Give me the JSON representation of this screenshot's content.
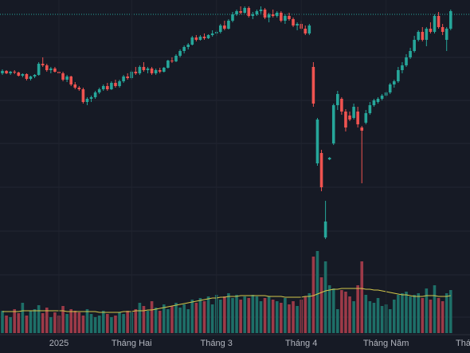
{
  "chart_data": {
    "type": "candlestick",
    "categories": [
      null,
      null,
      null,
      null,
      null,
      null,
      null,
      null,
      null,
      null,
      null,
      null,
      null,
      null,
      "2025",
      null,
      null,
      null,
      null,
      null,
      null,
      null,
      null,
      null,
      null,
      null,
      null,
      null,
      null,
      null,
      null,
      null,
      "Tháng Hai",
      null,
      null,
      null,
      null,
      null,
      null,
      null,
      null,
      null,
      null,
      null,
      null,
      null,
      null,
      null,
      null,
      null,
      null,
      null,
      null,
      "Tháng 3",
      null,
      null,
      null,
      null,
      null,
      null,
      null,
      null,
      null,
      null,
      null,
      null,
      null,
      null,
      null,
      null,
      null,
      null,
      null,
      null,
      "Tháng 4",
      null,
      null,
      null,
      null,
      null,
      null,
      null,
      null,
      null,
      null,
      null,
      null,
      null,
      null,
      null,
      null,
      null,
      null,
      null,
      null,
      "Tháng Năm",
      null,
      null,
      null,
      null,
      null,
      null,
      null,
      null,
      null,
      null,
      null,
      null,
      null,
      null,
      null,
      null
    ],
    "next_label": "Thá",
    "open": [
      208,
      211,
      208,
      210,
      209,
      205,
      207,
      201,
      204,
      206,
      220,
      218,
      212,
      214,
      210,
      208,
      200,
      204,
      194,
      190,
      188,
      172,
      176,
      178,
      184,
      188,
      192,
      188,
      196,
      192,
      198,
      204,
      202,
      210,
      208,
      216,
      212,
      214,
      208,
      212,
      210,
      215,
      224,
      223,
      230,
      236,
      241,
      244,
      253,
      250,
      254,
      252,
      256,
      258,
      260,
      268,
      264,
      274,
      282,
      286,
      284,
      290,
      280,
      282,
      286,
      288,
      278,
      282,
      280,
      284,
      274,
      280,
      276,
      268,
      270,
      264,
      258,
      216,
      95,
      108,
      2,
      100,
      120,
      168,
      176,
      160,
      155,
      152,
      160,
      140,
      146,
      158,
      168,
      172,
      176,
      180,
      184,
      194,
      198,
      212,
      218,
      228,
      236,
      250,
      260,
      250,
      264,
      260,
      280,
      266,
      250,
      264
    ],
    "high": [
      213,
      212,
      211,
      212,
      210,
      208,
      208,
      205,
      207,
      222,
      228,
      220,
      216,
      216,
      213,
      210,
      206,
      205,
      197,
      192,
      190,
      178,
      180,
      186,
      190,
      194,
      196,
      198,
      200,
      200,
      206,
      208,
      212,
      216,
      218,
      222,
      216,
      216,
      214,
      215,
      216,
      225,
      228,
      232,
      238,
      243,
      246,
      255,
      256,
      256,
      258,
      257,
      262,
      262,
      270,
      274,
      276,
      285,
      288,
      292,
      292,
      292,
      285,
      288,
      292,
      290,
      284,
      288,
      286,
      286,
      282,
      284,
      278,
      272,
      274,
      268,
      270,
      222,
      152,
      112,
      48,
      103,
      170,
      186,
      178,
      163,
      160,
      170,
      166,
      142,
      162,
      172,
      176,
      178,
      182,
      186,
      196,
      200,
      216,
      222,
      232,
      240,
      255,
      262,
      266,
      266,
      272,
      282,
      285,
      270,
      266,
      288
    ],
    "low": [
      206,
      207,
      206,
      207,
      204,
      203,
      199,
      199,
      202,
      205,
      216,
      210,
      208,
      209,
      205,
      198,
      197,
      192,
      188,
      186,
      170,
      168,
      172,
      176,
      182,
      186,
      186,
      187,
      190,
      190,
      196,
      200,
      200,
      206,
      206,
      210,
      208,
      206,
      206,
      208,
      209,
      214,
      221,
      222,
      228,
      233,
      238,
      243,
      248,
      249,
      250,
      251,
      254,
      255,
      258,
      262,
      263,
      272,
      280,
      282,
      283,
      278,
      276,
      280,
      283,
      276,
      272,
      278,
      278,
      272,
      270,
      274,
      266,
      262,
      262,
      256,
      256,
      166,
      92,
      60,
      0,
      99,
      118,
      162,
      156,
      135,
      148,
      150,
      140,
      70,
      144,
      156,
      166,
      170,
      174,
      178,
      182,
      190,
      196,
      208,
      216,
      226,
      234,
      248,
      248,
      242,
      258,
      258,
      264,
      256,
      236,
      262
    ],
    "close": [
      211,
      208,
      210,
      209,
      205,
      207,
      201,
      204,
      206,
      220,
      218,
      212,
      214,
      210,
      208,
      200,
      204,
      194,
      190,
      188,
      172,
      176,
      178,
      184,
      188,
      192,
      188,
      196,
      192,
      198,
      204,
      202,
      210,
      208,
      216,
      212,
      214,
      208,
      212,
      210,
      215,
      224,
      223,
      230,
      236,
      241,
      244,
      253,
      250,
      254,
      252,
      256,
      258,
      260,
      268,
      264,
      274,
      282,
      286,
      284,
      290,
      280,
      282,
      286,
      288,
      278,
      282,
      280,
      284,
      274,
      280,
      276,
      268,
      270,
      264,
      258,
      268,
      170,
      150,
      65,
      22,
      102,
      168,
      182,
      160,
      140,
      150,
      166,
      144,
      136,
      158,
      168,
      174,
      176,
      180,
      184,
      194,
      198,
      212,
      218,
      228,
      236,
      250,
      260,
      250,
      264,
      260,
      280,
      266,
      260,
      264,
      286
    ],
    "volume": [
      28,
      22,
      20,
      30,
      25,
      38,
      22,
      28,
      30,
      35,
      25,
      32,
      20,
      26,
      22,
      34,
      24,
      30,
      28,
      26,
      22,
      30,
      24,
      20,
      22,
      28,
      24,
      20,
      22,
      26,
      24,
      28,
      26,
      30,
      38,
      34,
      28,
      40,
      32,
      28,
      36,
      30,
      34,
      38,
      32,
      36,
      30,
      42,
      38,
      44,
      40,
      46,
      36,
      48,
      42,
      46,
      50,
      44,
      48,
      42,
      46,
      44,
      48,
      46,
      40,
      44,
      46,
      42,
      40,
      38,
      44,
      36,
      40,
      34,
      42,
      46,
      50,
      96,
      103,
      70,
      90,
      60,
      56,
      30,
      54,
      52,
      46,
      40,
      60,
      90,
      48,
      40,
      38,
      44,
      34,
      36,
      30,
      42,
      48,
      50,
      52,
      46,
      48,
      50,
      44,
      56,
      42,
      60,
      44,
      40,
      50,
      54
    ],
    "volume_ma": [
      27,
      27,
      27,
      27,
      27,
      28,
      28,
      28,
      28,
      28,
      28,
      28,
      28,
      28,
      28,
      28,
      27,
      27,
      27,
      27,
      27,
      27,
      27,
      27,
      26,
      26,
      26,
      26,
      26,
      26,
      27,
      27,
      27,
      28,
      28,
      28,
      29,
      29,
      30,
      31,
      32,
      33,
      34,
      35,
      36,
      37,
      38,
      39,
      40,
      41,
      42,
      43,
      44,
      44,
      45,
      45,
      46,
      46,
      46,
      47,
      47,
      47,
      47,
      47,
      47,
      47,
      46,
      46,
      46,
      46,
      45,
      45,
      45,
      45,
      45,
      46,
      46,
      47,
      49,
      51,
      53,
      54,
      55,
      55,
      56,
      56,
      56,
      56,
      56,
      56,
      55,
      55,
      54,
      54,
      53,
      52,
      51,
      50,
      49,
      48,
      48,
      47,
      46,
      46,
      46,
      47,
      47,
      47,
      46,
      46,
      46,
      47
    ],
    "ylim": [
      0,
      300
    ],
    "volume_lim": [
      0,
      110
    ],
    "up_color": "#26a69a",
    "down_color": "#ef5350",
    "volume_up_color": "#1e6f68",
    "volume_down_color": "#9c3a48",
    "ma_color": "#d4c84a"
  }
}
